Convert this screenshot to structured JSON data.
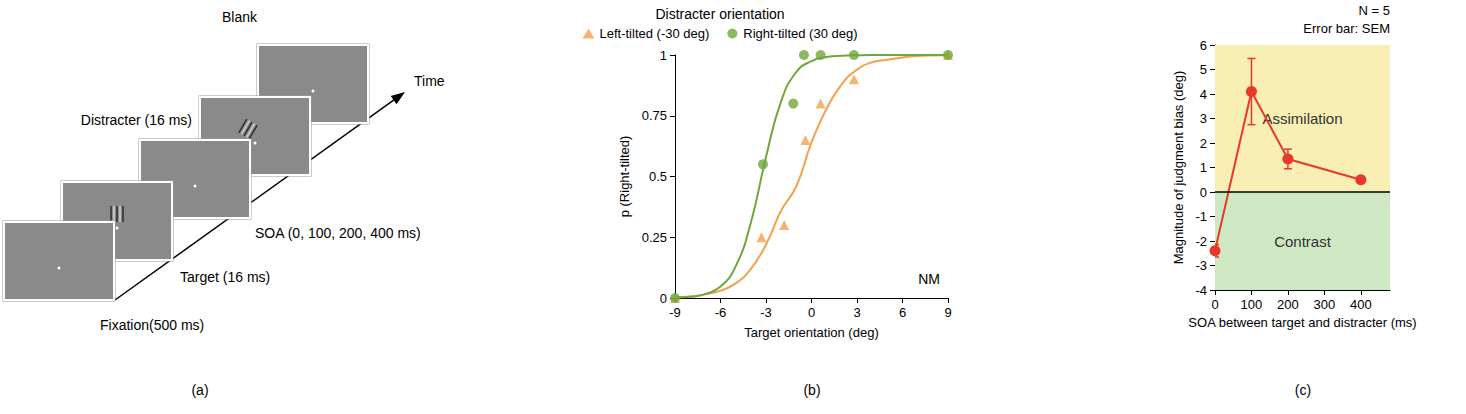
{
  "diagram": {
    "panel_label": "(a)",
    "frames": [
      "Fixation(500 ms)",
      "Target (16 ms)",
      "SOA (0, 100, 200, 400 ms)",
      "Distracter (16 ms)",
      "Blank"
    ],
    "arrow_label": "Time"
  },
  "chart_data": [
    {
      "type": "scatter",
      "panel_label": "(b)",
      "title": "Distracter orientation",
      "xlabel": "Target orientation (deg)",
      "ylabel": "p (Right-tilted)",
      "xlim": [
        -9,
        9
      ],
      "xticks": [
        -9,
        -6,
        -3,
        0,
        3,
        6,
        9
      ],
      "ylim": [
        0,
        1
      ],
      "yticks": [
        0,
        0.25,
        0.5,
        0.75,
        1
      ],
      "legend": "top",
      "grid": false,
      "annotation": "NM",
      "series": [
        {
          "name": "Left-tilted (-30 deg)",
          "color": "#f4a14f",
          "marker": "triangle",
          "x": [
            -9,
            -3.3,
            -1.8,
            -0.4,
            0.6,
            2.8,
            9
          ],
          "values": [
            0,
            0.25,
            0.3,
            0.65,
            0.8,
            0.9,
            1
          ]
        },
        {
          "name": "Right-tilted (30 deg)",
          "color": "#6fa83a",
          "marker": "circle",
          "x": [
            -9,
            -3.2,
            -1.2,
            -0.5,
            0.6,
            2.8,
            9
          ],
          "values": [
            0,
            0.55,
            0.8,
            1,
            1,
            1,
            1
          ]
        },
        {
          "type": "line",
          "color": "#f4a14f",
          "x": [
            -9,
            -8,
            -7,
            -6,
            -5,
            -4,
            -3,
            -2,
            -1,
            0,
            1,
            2,
            3,
            4,
            5,
            6,
            7,
            8,
            9
          ],
          "values": [
            0.003,
            0.006,
            0.016,
            0.03,
            0.06,
            0.12,
            0.22,
            0.36,
            0.46,
            0.64,
            0.78,
            0.88,
            0.94,
            0.97,
            0.98,
            0.99,
            0.996,
            0.998,
            0.999
          ]
        },
        {
          "type": "line",
          "color": "#6fa83a",
          "x": [
            -9,
            -8,
            -7,
            -6,
            -5,
            -4,
            -3,
            -2,
            -1,
            0,
            1,
            2,
            3,
            4,
            5,
            6,
            7,
            8,
            9
          ],
          "values": [
            0.002,
            0.005,
            0.016,
            0.047,
            0.13,
            0.31,
            0.58,
            0.81,
            0.93,
            0.975,
            0.992,
            0.997,
            0.999,
            1,
            1,
            1,
            1,
            1,
            1
          ]
        }
      ]
    },
    {
      "type": "line",
      "panel_label": "(c)",
      "xlabel": "SOA between target and distracter (ms)",
      "ylabel": "Magnitude of judgment bias (deg)",
      "x": [
        0,
        100,
        200,
        400
      ],
      "values": [
        -2.4,
        4.1,
        1.35,
        0.5
      ],
      "errors": [
        0.25,
        1.35,
        0.4,
        0.1
      ],
      "color": "#e8382a",
      "marker": "circle",
      "xlim": [
        0,
        480
      ],
      "xticks": [
        0,
        100,
        200,
        300,
        400
      ],
      "ylim": [
        -4,
        6
      ],
      "yticks": [
        -4,
        -3,
        -2,
        -1,
        0,
        1,
        2,
        3,
        4,
        5,
        6
      ],
      "grid": false,
      "reference_line": 0,
      "regions": [
        {
          "label": "Assimilation",
          "from": 0,
          "to": 6,
          "color": "#f9efb4"
        },
        {
          "label": "Contrast",
          "from": -4,
          "to": 0,
          "color": "#cde8c3"
        }
      ],
      "annotations": [
        "N = 5",
        "Error bar: SEM"
      ]
    }
  ]
}
